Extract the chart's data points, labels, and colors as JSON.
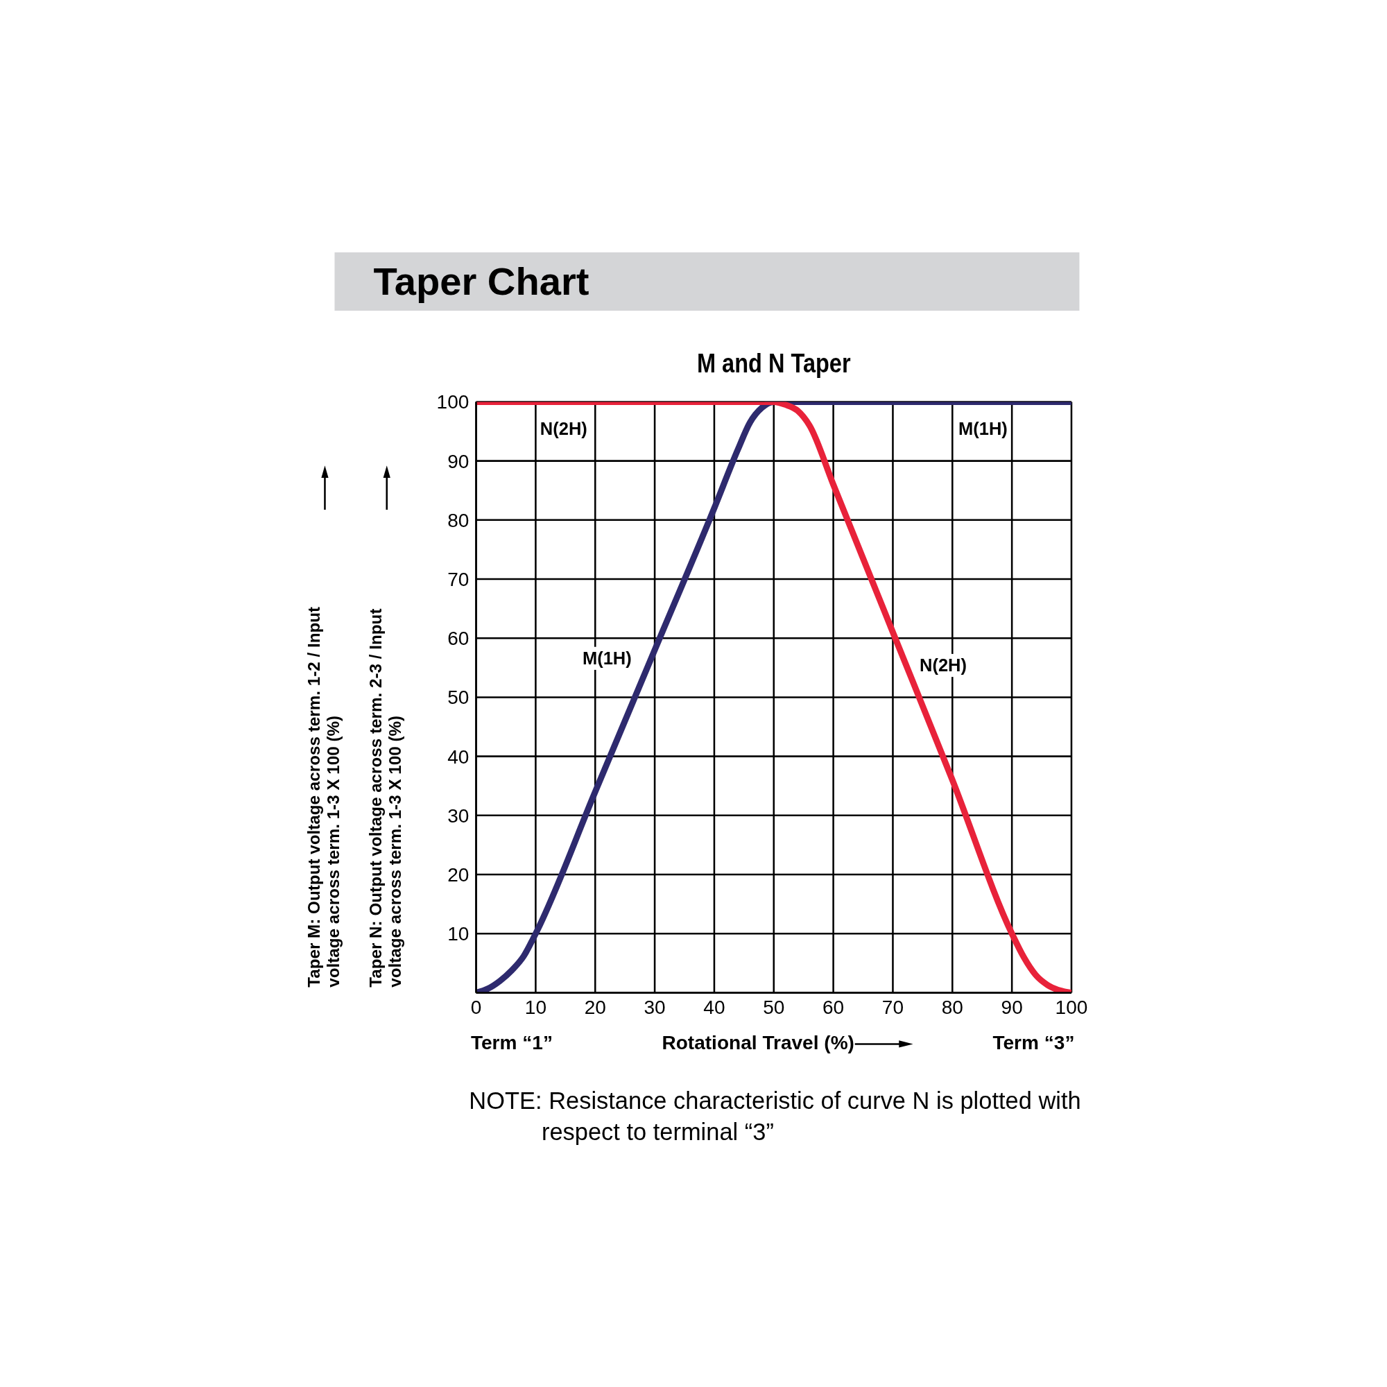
{
  "chart_data": {
    "type": "line",
    "title": "Taper Chart",
    "subtitle": "M and N Taper",
    "xlabel": "Rotational Travel (%)",
    "xlim": [
      0,
      100
    ],
    "ylim": [
      0,
      100
    ],
    "xticks": [
      0,
      10,
      20,
      30,
      40,
      50,
      60,
      70,
      80,
      90,
      100
    ],
    "yticks": [
      {
        "value": 0,
        "label": null
      },
      10,
      20,
      30,
      40,
      50,
      60,
      70,
      80,
      90,
      100
    ],
    "grid": true,
    "legend": false,
    "marker": "none",
    "line_style": "solid",
    "series": [
      {
        "color": "#2e2a6e",
        "x": [
          0,
          2,
          4,
          6,
          8,
          10,
          20,
          30,
          40,
          44,
          46,
          48,
          50,
          100
        ],
        "values": [
          0,
          0.7,
          2,
          3.8,
          6.2,
          10,
          34,
          58,
          82,
          92,
          96.5,
          99,
          100,
          100
        ]
      },
      {
        "color": "#e8223a",
        "x": [
          0,
          50,
          52,
          54,
          56,
          60,
          70,
          80,
          90,
          92,
          94,
          96,
          98,
          100
        ],
        "values": [
          100,
          100,
          99.5,
          98.5,
          96,
          86,
          61,
          36,
          10,
          6,
          3,
          1.3,
          0.4,
          0
        ]
      }
    ],
    "annotations": [
      "N(2H)",
      "M(1H)",
      "M(1H)",
      "N(2H)",
      "Term “1”",
      "Term “3”",
      "NOTE: Resistance characteristic of curve N is plotted with respect to terminal “3”",
      "Taper M: Output voltage across term. 1-2 / Input voltage across term. 1-3 X 100 (%)",
      "Taper N: Output voltage across term. 2-3 / Input voltage across term. 1-3 X 100 (%)"
    ]
  }
}
